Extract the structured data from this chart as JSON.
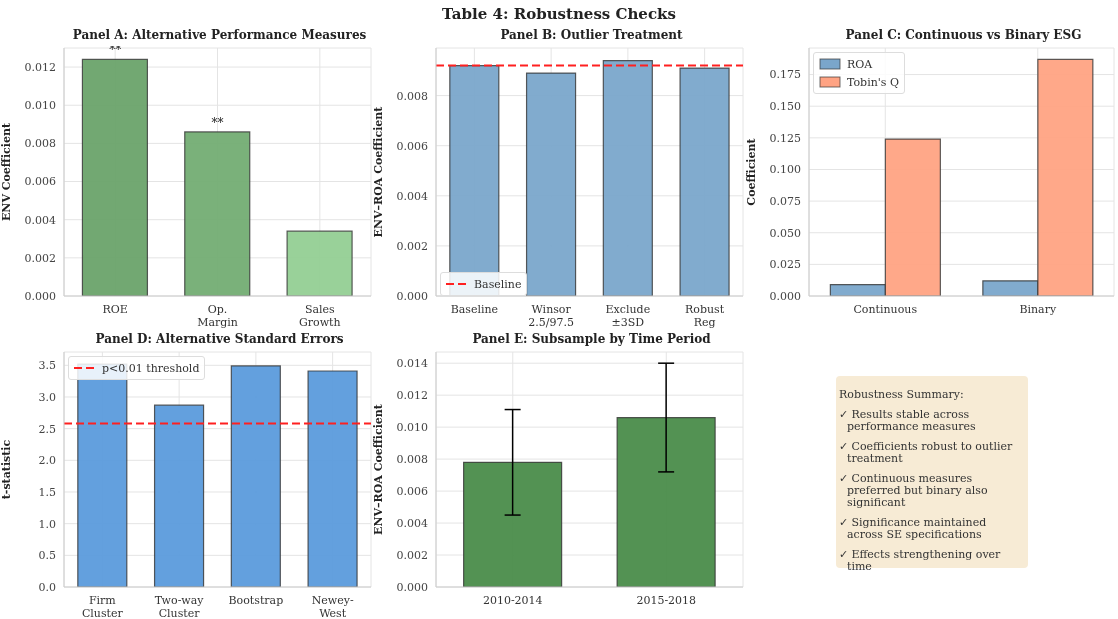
{
  "chart_data": [
    {
      "type": "other",
      "title": "Table 4: Robustness Checks"
    },
    {
      "type": "bar",
      "title": "Panel A: Alternative Performance Measures",
      "ylabel": "ENV Coefficient",
      "categories": [
        "ROE",
        "Op.\nMargin",
        "Sales\nGrowth"
      ],
      "values": [
        0.0124,
        0.0086,
        0.0034
      ],
      "colors": [
        "#6aa36a",
        "#73ad73",
        "#93cf93"
      ],
      "ylim": [
        0,
        0.013
      ],
      "yticks": [
        {
          "value": 0,
          "label": "0.000"
        },
        {
          "value": 0.002,
          "label": "0.002"
        },
        {
          "value": 0.004,
          "label": "0.004"
        },
        {
          "value": 0.006,
          "label": "0.006"
        },
        {
          "value": 0.008,
          "label": "0.008"
        },
        {
          "value": 0.01,
          "label": "0.010"
        },
        {
          "value": 0.012,
          "label": "0.012"
        }
      ],
      "grid": true,
      "annotations": [
        "**",
        "**"
      ]
    },
    {
      "type": "bar",
      "title": "Panel B: Outlier Treatment",
      "ylabel": "ENV–ROA Coefficient",
      "categories": [
        "Baseline",
        "Winsor\n2.5/97.5",
        "Exclude\n±3SD",
        "Robust\nReg"
      ],
      "values": [
        0.0092,
        0.0089,
        0.0094,
        0.0091
      ],
      "color": "#7aa6cb",
      "ylim": [
        0,
        0.0099
      ],
      "yticks": [
        {
          "value": 0,
          "label": "0.000"
        },
        {
          "value": 0.002,
          "label": "0.002"
        },
        {
          "value": 0.004,
          "label": "0.004"
        },
        {
          "value": 0.006,
          "label": "0.006"
        },
        {
          "value": 0.008,
          "label": "0.008"
        }
      ],
      "grid": true,
      "legend": "bottom left",
      "ref_lines": [
        {
          "axis": "y",
          "value": 0.0092,
          "label": "Baseline",
          "color": "#ff2020",
          "line_style": "dashed"
        }
      ]
    },
    {
      "type": "bar",
      "title": "Panel C: Continuous vs Binary ESG",
      "ylabel": "Coefficient",
      "categories": [
        "Continuous",
        "Binary"
      ],
      "series": [
        {
          "name": "ROA",
          "color": "#7aa6cb",
          "values": [
            0.009,
            0.012
          ]
        },
        {
          "name": "Tobin's Q",
          "color": "#ffa383",
          "values": [
            0.124,
            0.187
          ]
        }
      ],
      "ylim": [
        0,
        0.196
      ],
      "yticks": [
        {
          "value": 0,
          "label": "0.000"
        },
        {
          "value": 0.025,
          "label": "0.025"
        },
        {
          "value": 0.05,
          "label": "0.050"
        },
        {
          "value": 0.075,
          "label": "0.075"
        },
        {
          "value": 0.1,
          "label": "0.100"
        },
        {
          "value": 0.125,
          "label": "0.125"
        },
        {
          "value": 0.15,
          "label": "0.150"
        },
        {
          "value": 0.175,
          "label": "0.175"
        }
      ],
      "grid": true,
      "legend": "top left"
    },
    {
      "type": "bar",
      "title": "Panel D: Alternative Standard Errors",
      "ylabel": "t-statistic",
      "categories": [
        "Firm\nCluster",
        "Two-way\nCluster",
        "Bootstrap",
        "Newey-\nWest"
      ],
      "values": [
        3.52,
        2.87,
        3.49,
        3.41
      ],
      "color": "#5b9bdc",
      "ylim": [
        0,
        3.71
      ],
      "yticks": [
        {
          "value": 0,
          "label": "0.0"
        },
        {
          "value": 0.5,
          "label": "0.5"
        },
        {
          "value": 1,
          "label": "1.0"
        },
        {
          "value": 1.5,
          "label": "1.5"
        },
        {
          "value": 2,
          "label": "2.0"
        },
        {
          "value": 2.5,
          "label": "2.5"
        },
        {
          "value": 3,
          "label": "3.0"
        },
        {
          "value": 3.5,
          "label": "3.5"
        }
      ],
      "grid": true,
      "legend": "top left",
      "ref_lines": [
        {
          "axis": "y",
          "value": 2.58,
          "label": "p<0.01 threshold",
          "color": "#ff2020",
          "line_style": "dashed"
        }
      ]
    },
    {
      "type": "bar",
      "title": "Panel E: Subsample by Time Period",
      "ylabel": "ENV–ROA Coefficient",
      "categories": [
        "2010-2014",
        "2015-2018"
      ],
      "values": [
        0.0078,
        0.0106
      ],
      "errors": [
        [
          0.0045,
          0.0111
        ],
        [
          0.0072,
          0.014
        ]
      ],
      "color": "#4a8c4a",
      "ylim": [
        0,
        0.0147
      ],
      "yticks": [
        {
          "value": 0,
          "label": "0.000"
        },
        {
          "value": 0.002,
          "label": "0.002"
        },
        {
          "value": 0.004,
          "label": "0.004"
        },
        {
          "value": 0.006,
          "label": "0.006"
        },
        {
          "value": 0.008,
          "label": "0.008"
        },
        {
          "value": 0.01,
          "label": "0.010"
        },
        {
          "value": 0.012,
          "label": "0.012"
        },
        {
          "value": 0.014,
          "label": "0.014"
        }
      ],
      "grid": true
    },
    {
      "type": "other",
      "title": "Robustness Summary:",
      "color": "#f7ebd5",
      "annotations": [
        "✓ Results stable across performance measures",
        "✓ Coefficients robust to outlier treatment",
        "✓ Continuous measures preferred but binary also significant",
        "✓ Significance maintained across SE specifications",
        "✓ Effects strengthening over time"
      ]
    }
  ]
}
